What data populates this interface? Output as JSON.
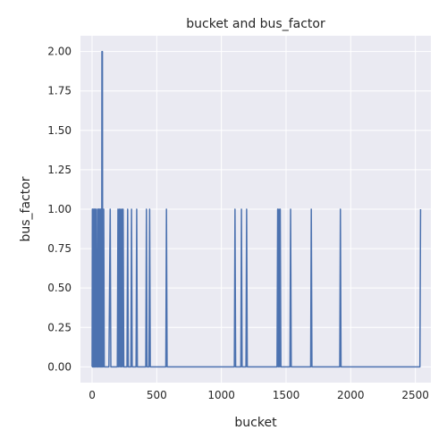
{
  "chart_data": {
    "type": "line",
    "title": "bucket and bus_factor",
    "xlabel": "bucket",
    "ylabel": "bus_factor",
    "xlim": [
      -90,
      2620
    ],
    "ylim": [
      -0.1,
      2.1
    ],
    "xticks": [
      0,
      500,
      1000,
      1500,
      2000,
      2500
    ],
    "yticks": [
      "0.00",
      "0.25",
      "0.50",
      "0.75",
      "1.00",
      "1.25",
      "1.50",
      "1.75",
      "2.00"
    ],
    "grid": true,
    "background": "#eaeaf2",
    "grid_color": "#ffffff",
    "line_color": "#4c72b0",
    "series": [
      {
        "x": [
          0,
          2,
          4,
          6,
          8,
          12,
          14,
          16,
          18,
          20,
          24,
          26,
          28,
          30,
          34,
          40,
          42,
          44,
          46,
          48,
          50,
          52,
          54,
          58,
          60,
          62,
          64,
          66,
          68,
          70,
          72,
          74,
          76,
          78,
          80,
          82,
          86,
          90,
          94,
          100,
          130,
          140,
          145,
          150,
          195,
          200,
          205,
          210,
          215,
          220,
          225,
          230,
          235,
          240,
          245,
          250,
          270,
          275,
          280,
          285,
          300,
          305,
          310,
          315,
          340,
          345,
          350,
          415,
          420,
          425,
          430,
          440,
          445,
          450,
          570,
          575,
          580,
          1100,
          1105,
          1110,
          1150,
          1155,
          1160,
          1190,
          1195,
          1200,
          1430,
          1435,
          1440,
          1445,
          1450,
          1455,
          1460,
          1465,
          1530,
          1535,
          1540,
          1690,
          1695,
          1700,
          1915,
          1920,
          1925,
          2535,
          2540
        ],
        "y": [
          0,
          1,
          0,
          1,
          0,
          0,
          1,
          0,
          1,
          0,
          0,
          1,
          0,
          1,
          0,
          0,
          1,
          0,
          1,
          0,
          1,
          0,
          1,
          0,
          1,
          0,
          1,
          0,
          1,
          0,
          1,
          0,
          2,
          0,
          2,
          0,
          0,
          1,
          0,
          0,
          0,
          1,
          0,
          0,
          0,
          1,
          0,
          1,
          0,
          1,
          0,
          1,
          0,
          1,
          0,
          0,
          0,
          1,
          0,
          0,
          0,
          1,
          0,
          0,
          0,
          1,
          0,
          0,
          1,
          0,
          0,
          0,
          1,
          0,
          0,
          1,
          0,
          0,
          1,
          0,
          0,
          1,
          0,
          0,
          1,
          0,
          0,
          1,
          0,
          1,
          0,
          1,
          0,
          0,
          0,
          1,
          0,
          0,
          1,
          0,
          0,
          1,
          0,
          0,
          1
        ]
      }
    ]
  }
}
